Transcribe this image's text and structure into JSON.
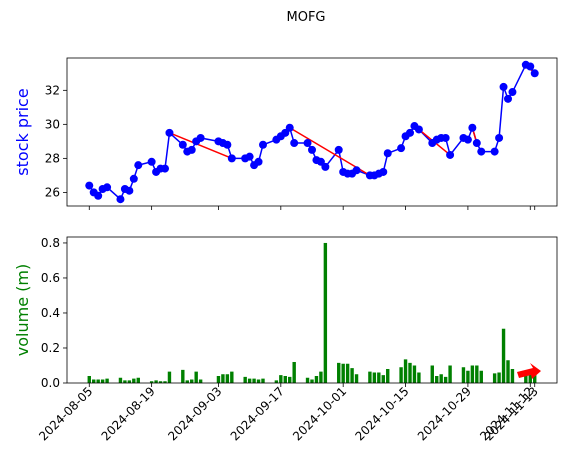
{
  "chart_data": {
    "type": "stock",
    "title": "MOFG",
    "x": [
      "2024-08-05",
      "2024-08-06",
      "2024-08-07",
      "2024-08-08",
      "2024-08-09",
      "2024-08-12",
      "2024-08-13",
      "2024-08-14",
      "2024-08-15",
      "2024-08-16",
      "2024-08-19",
      "2024-08-20",
      "2024-08-21",
      "2024-08-22",
      "2024-08-23",
      "2024-08-26",
      "2024-08-27",
      "2024-08-28",
      "2024-08-29",
      "2024-08-30",
      "2024-09-03",
      "2024-09-04",
      "2024-09-05",
      "2024-09-06",
      "2024-09-09",
      "2024-09-10",
      "2024-09-11",
      "2024-09-12",
      "2024-09-13",
      "2024-09-16",
      "2024-09-17",
      "2024-09-18",
      "2024-09-19",
      "2024-09-20",
      "2024-09-23",
      "2024-09-24",
      "2024-09-25",
      "2024-09-26",
      "2024-09-27",
      "2024-09-30",
      "2024-10-01",
      "2024-10-02",
      "2024-10-03",
      "2024-10-04",
      "2024-10-07",
      "2024-10-08",
      "2024-10-09",
      "2024-10-10",
      "2024-10-11",
      "2024-10-14",
      "2024-10-15",
      "2024-10-16",
      "2024-10-17",
      "2024-10-18",
      "2024-10-21",
      "2024-10-22",
      "2024-10-23",
      "2024-10-24",
      "2024-10-25",
      "2024-10-28",
      "2024-10-29",
      "2024-10-30",
      "2024-10-31",
      "2024-11-01",
      "2024-11-04",
      "2024-11-05",
      "2024-11-06",
      "2024-11-07",
      "2024-11-08",
      "2024-11-11",
      "2024-11-12",
      "2024-11-13"
    ],
    "xlim": [
      "2024-07-31",
      "2024-11-18"
    ],
    "xticks": [
      "2024-08-05",
      "2024-08-19",
      "2024-09-03",
      "2024-09-17",
      "2024-10-01",
      "2024-10-15",
      "2024-10-29",
      "2024-11-12",
      "2024-11-13"
    ],
    "price": {
      "ylabel": "stock price",
      "color": "#0000ff",
      "trend_color": "#ff0000",
      "values": [
        26.4,
        26.0,
        25.8,
        26.2,
        26.3,
        25.6,
        26.2,
        26.1,
        26.8,
        27.6,
        27.8,
        27.2,
        27.4,
        27.4,
        29.5,
        28.8,
        28.4,
        28.5,
        29.0,
        29.2,
        29.0,
        28.9,
        28.8,
        28.0,
        28.0,
        28.1,
        27.6,
        27.8,
        28.8,
        29.1,
        29.3,
        29.5,
        29.8,
        28.9,
        28.9,
        28.5,
        27.9,
        27.8,
        27.5,
        28.5,
        27.2,
        27.1,
        27.1,
        27.3,
        27.0,
        27.0,
        27.1,
        27.2,
        28.3,
        28.6,
        29.3,
        29.5,
        29.9,
        29.7,
        28.9,
        29.1,
        29.2,
        29.2,
        28.2,
        29.2,
        29.1,
        29.8,
        28.9,
        28.4,
        28.4,
        29.2,
        32.2,
        31.5,
        31.9,
        33.5,
        33.4,
        33.0
      ],
      "trend_segments": [
        [
          14,
          23
        ],
        [
          32,
          44
        ],
        [
          53,
          58
        ],
        [
          61,
          62
        ],
        [
          69,
          71
        ]
      ],
      "ylim": [
        25.2,
        33.9
      ],
      "yticks": [
        26,
        28,
        30,
        32
      ]
    },
    "volume": {
      "ylabel": "volume (m)",
      "color": "#008000",
      "values": [
        0.04,
        0.02,
        0.02,
        0.02,
        0.025,
        0.03,
        0.015,
        0.015,
        0.025,
        0.03,
        0.01,
        0.015,
        0.01,
        0.01,
        0.065,
        0.075,
        0.015,
        0.02,
        0.065,
        0.02,
        0.04,
        0.05,
        0.05,
        0.065,
        0.035,
        0.025,
        0.025,
        0.02,
        0.025,
        0.015,
        0.045,
        0.04,
        0.035,
        0.12,
        0.03,
        0.02,
        0.04,
        0.065,
        0.8,
        0.115,
        0.11,
        0.11,
        0.085,
        0.05,
        0.065,
        0.06,
        0.06,
        0.045,
        0.08,
        0.09,
        0.135,
        0.115,
        0.1,
        0.06,
        0.1,
        0.04,
        0.05,
        0.035,
        0.1,
        0.09,
        0.07,
        0.1,
        0.1,
        0.07,
        0.055,
        0.06,
        0.31,
        0.13,
        0.08,
        0.06,
        0.07,
        0.05
      ],
      "ylim": [
        0,
        0.834
      ],
      "yticks": [
        {
          "value": 0,
          "label": "0.0"
        },
        {
          "value": 0.2,
          "label": "0.2"
        },
        {
          "value": 0.4,
          "label": "0.4"
        },
        {
          "value": 0.6,
          "label": "0.6"
        },
        {
          "value": 0.8,
          "label": "0.8"
        }
      ]
    }
  }
}
